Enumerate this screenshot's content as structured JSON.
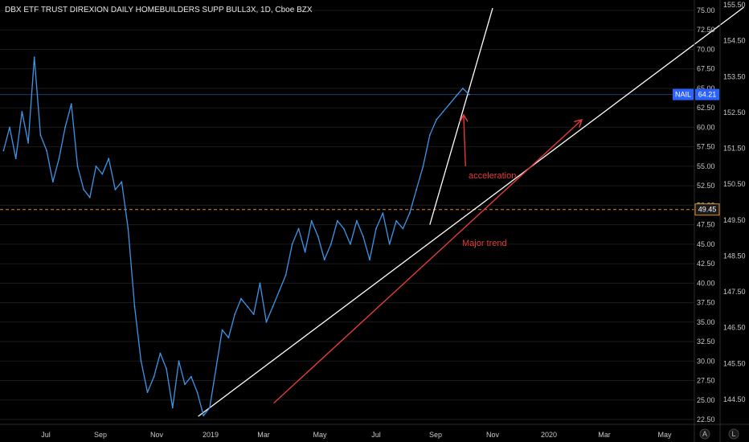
{
  "chart_data": {
    "type": "line",
    "title": "DBX ETF TRUST DIREXION DAILY HOMEBUILDERS SUPP BULL3X, 1D, Cboe BZX",
    "ticker": "NAIL",
    "last_price": 64.21,
    "last_price_label": "64.21",
    "reference_level": 49.45,
    "reference_level_label": "49.45",
    "x_tick_labels": [
      "Jul",
      "Sep",
      "Nov",
      "2019",
      "Mar",
      "May",
      "Jul",
      "Sep",
      "Nov",
      "2020",
      "Mar",
      "May"
    ],
    "y_left_ticks": [
      "75.00",
      "72.50",
      "70.00",
      "67.50",
      "65.00",
      "62.50",
      "60.00",
      "57.50",
      "55.00",
      "52.50",
      "50.00",
      "47.50",
      "45.00",
      "42.50",
      "40.00",
      "37.50",
      "35.00",
      "32.50",
      "30.00",
      "27.50",
      "25.00",
      "22.50"
    ],
    "y_left_range": [
      22.5,
      75
    ],
    "y_right_ticks": [
      "155.50",
      "154.50",
      "153.50",
      "152.50",
      "151.50",
      "150.50",
      "149.50",
      "148.50",
      "147.50",
      "146.50",
      "145.50",
      "144.50"
    ],
    "x": [
      "2018-05-14",
      "2018-05-21",
      "2018-05-28",
      "2018-06-04",
      "2018-06-11",
      "2018-06-18",
      "2018-06-25",
      "2018-07-02",
      "2018-07-09",
      "2018-07-16",
      "2018-07-23",
      "2018-07-30",
      "2018-08-06",
      "2018-08-13",
      "2018-08-20",
      "2018-08-27",
      "2018-09-03",
      "2018-09-10",
      "2018-09-17",
      "2018-09-24",
      "2018-10-01",
      "2018-10-08",
      "2018-10-15",
      "2018-10-22",
      "2018-10-29",
      "2018-11-05",
      "2018-11-12",
      "2018-11-19",
      "2018-11-26",
      "2018-12-03",
      "2018-12-10",
      "2018-12-17",
      "2018-12-24",
      "2018-12-31",
      "2019-01-07",
      "2019-01-14",
      "2019-01-21",
      "2019-01-28",
      "2019-02-04",
      "2019-02-11",
      "2019-02-18",
      "2019-02-25",
      "2019-03-04",
      "2019-03-11",
      "2019-03-18",
      "2019-03-25",
      "2019-04-01",
      "2019-04-08",
      "2019-04-15",
      "2019-04-22",
      "2019-04-29",
      "2019-05-06",
      "2019-05-13",
      "2019-05-20",
      "2019-05-27",
      "2019-06-03",
      "2019-06-10",
      "2019-06-17",
      "2019-06-24",
      "2019-07-01",
      "2019-07-08",
      "2019-07-15",
      "2019-07-22",
      "2019-07-29",
      "2019-08-05",
      "2019-08-12",
      "2019-08-19",
      "2019-08-26",
      "2019-09-02",
      "2019-09-09",
      "2019-09-16",
      "2019-09-23",
      "2019-09-30",
      "2019-10-07"
    ],
    "series": [
      {
        "values": [
          57,
          60,
          56,
          62,
          58,
          69,
          59,
          57,
          53,
          56,
          60,
          63,
          55,
          52,
          51,
          55,
          54,
          56,
          52,
          53,
          47,
          37,
          30,
          26,
          28,
          31,
          29,
          24,
          30,
          27,
          28,
          26,
          23,
          24,
          29,
          34,
          33,
          36,
          38,
          37,
          36,
          40,
          35,
          37,
          39,
          41,
          45,
          47,
          44,
          48,
          46,
          43,
          45,
          48,
          47,
          45,
          48,
          46,
          43,
          47,
          49,
          45,
          48,
          47,
          49,
          52,
          55,
          59,
          61,
          62,
          63,
          64,
          65,
          64.21
        ]
      }
    ],
    "colors": {
      "background": "#000000",
      "price_line": "#3d95e8",
      "trend_lines": "#ffffff",
      "annotation": "#e23a3a",
      "reference_line": "#e08a2e",
      "badge": "#2962ff",
      "grid": "#1b1b1b"
    },
    "annotations": {
      "acceleration": "acceleration",
      "major_trend": "Major trend"
    },
    "trend_lines": [
      {
        "from": [
          "2018-12-18",
          22.9
        ],
        "to": [
          "2020-07-20",
          75.4
        ]
      },
      {
        "from": [
          "2019-08-26",
          47.5
        ],
        "to": [
          "2019-11-01",
          75.3
        ]
      }
    ],
    "arrows": [
      {
        "from": [
          "2019-03-12",
          24.6
        ],
        "to": [
          "2020-02-05",
          60.9
        ]
      },
      {
        "from": [
          "2019-10-03",
          55.0
        ],
        "to": [
          "2019-10-01",
          61.5
        ]
      }
    ],
    "grid": false,
    "corner_labels": [
      "A",
      "L"
    ]
  }
}
